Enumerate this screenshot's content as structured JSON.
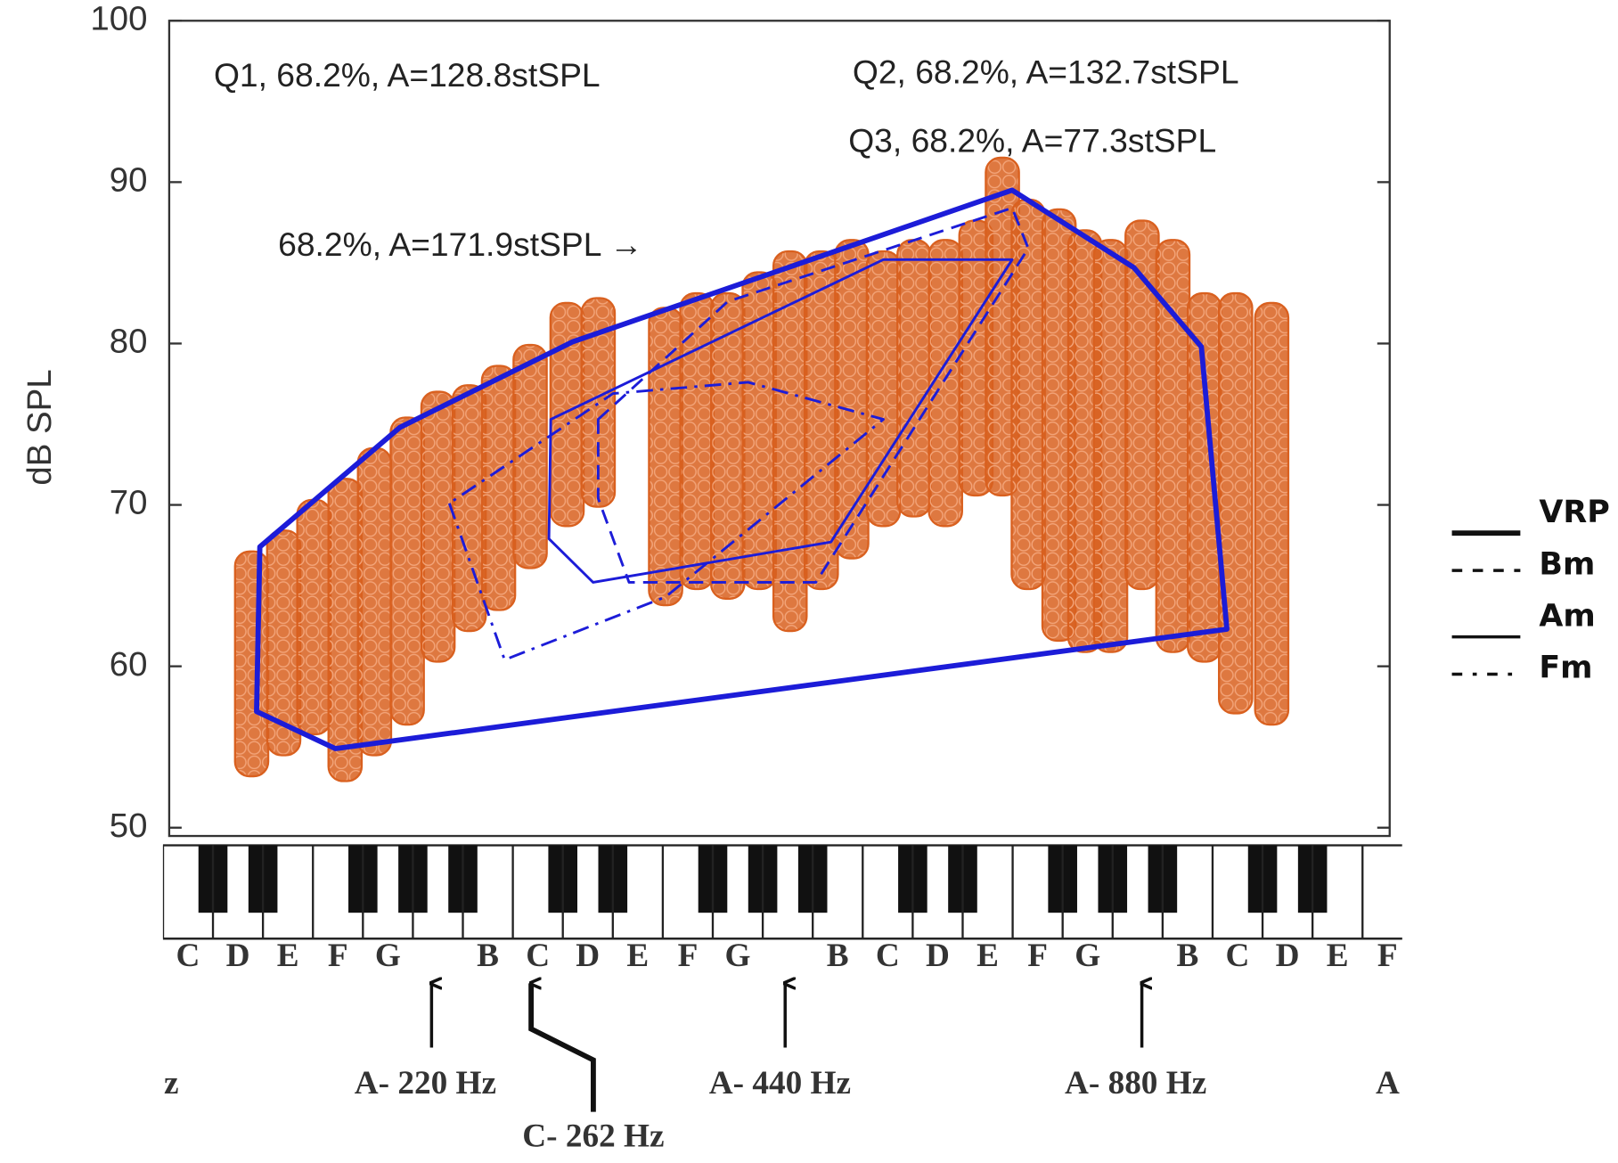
{
  "chart_data": {
    "type": "scatter",
    "ylabel": "dB SPL",
    "xscale": "log",
    "xlim": [
      131,
      1437
    ],
    "ylim": [
      50,
      100
    ],
    "yticks": [
      50,
      60,
      70,
      80,
      90,
      100
    ],
    "clusters": {
      "color": "#d9601f",
      "x": [
        154,
        164,
        174,
        185,
        196,
        209,
        222,
        236,
        250,
        266,
        286,
        304,
        347,
        369,
        392,
        417,
        443,
        471,
        500,
        532,
        565,
        601,
        638,
        672,
        707,
        751,
        790,
        831,
        884,
        939,
        999,
        1062,
        1140
      ],
      "low": [
        53.7,
        55.0,
        56.3,
        53.4,
        55.0,
        56.9,
        60.8,
        62.7,
        64.0,
        66.6,
        69.2,
        70.4,
        64.3,
        65.3,
        64.7,
        65.3,
        62.7,
        65.3,
        67.2,
        69.2,
        69.8,
        69.2,
        71.1,
        71.1,
        65.3,
        62.1,
        61.4,
        61.4,
        65.3,
        61.4,
        60.8,
        57.6,
        56.9
      ],
      "high": [
        66.6,
        67.9,
        69.8,
        71.1,
        73.0,
        74.9,
        76.5,
        76.9,
        78.1,
        79.4,
        82.0,
        82.3,
        81.7,
        82.6,
        82.6,
        83.9,
        85.2,
        85.2,
        85.9,
        85.2,
        85.9,
        85.9,
        87.1,
        91.0,
        88.4,
        87.8,
        86.5,
        85.9,
        87.1,
        85.9,
        82.6,
        82.6,
        82.0
      ]
    },
    "series": [
      {
        "name": "VRP",
        "color": "#1c1cd8",
        "line_style": "solid",
        "line_width": 5,
        "x": [
          156.5,
          155.5,
          181.5,
          1044,
          993,
          870,
          685,
          289,
          206
        ],
        "y": [
          67.4,
          57.2,
          54.9,
          62.3,
          79.8,
          84.7,
          89.5,
          80.1,
          74.8
        ]
      },
      {
        "name": "Bm",
        "color": "#1c1cd8",
        "line_style": "dashed",
        "line_width": 2.5,
        "x": [
          304,
          304,
          323,
          466,
          707,
          685,
          392
        ],
        "y": [
          75.3,
          70.4,
          65.2,
          65.2,
          85.9,
          88.4,
          82.6
        ]
      },
      {
        "name": "Am",
        "color": "#1c1cd8",
        "line_style": "solid",
        "line_width": 2.5,
        "x": [
          277,
          276,
          301,
          480,
          685,
          532
        ],
        "y": [
          75.3,
          67.9,
          65.2,
          67.7,
          85.2,
          85.2
        ]
      },
      {
        "name": "Fm",
        "color": "#1c1cd8",
        "line_style": "dashdot",
        "line_width": 2.5,
        "x": [
          227,
          253,
          347,
          532,
          408,
          313
        ],
        "y": [
          70.1,
          60.4,
          64.3,
          75.3,
          77.6,
          76.9
        ]
      }
    ],
    "annotations": [
      "Q1, 68.2%, A=128.8stSPL",
      "Q2, 68.2%, A=132.7stSPL",
      "Q3, 68.2%, A=77.3stSPL",
      "68.2%, A=171.9stSPL  →"
    ],
    "legend": "right"
  },
  "keyboard": {
    "notes": [
      "C",
      "D",
      "E",
      "F",
      "G",
      null,
      "B",
      "C",
      "D",
      "E",
      "F",
      "G",
      null,
      "B",
      "C",
      "D",
      "E",
      "F",
      "G",
      null,
      "B",
      "C",
      "D",
      "E",
      "F"
    ],
    "labels": [
      "z",
      "A- 220 Hz",
      "A- 440 Hz",
      "A- 880 Hz",
      "A",
      "C- 262 Hz"
    ]
  }
}
